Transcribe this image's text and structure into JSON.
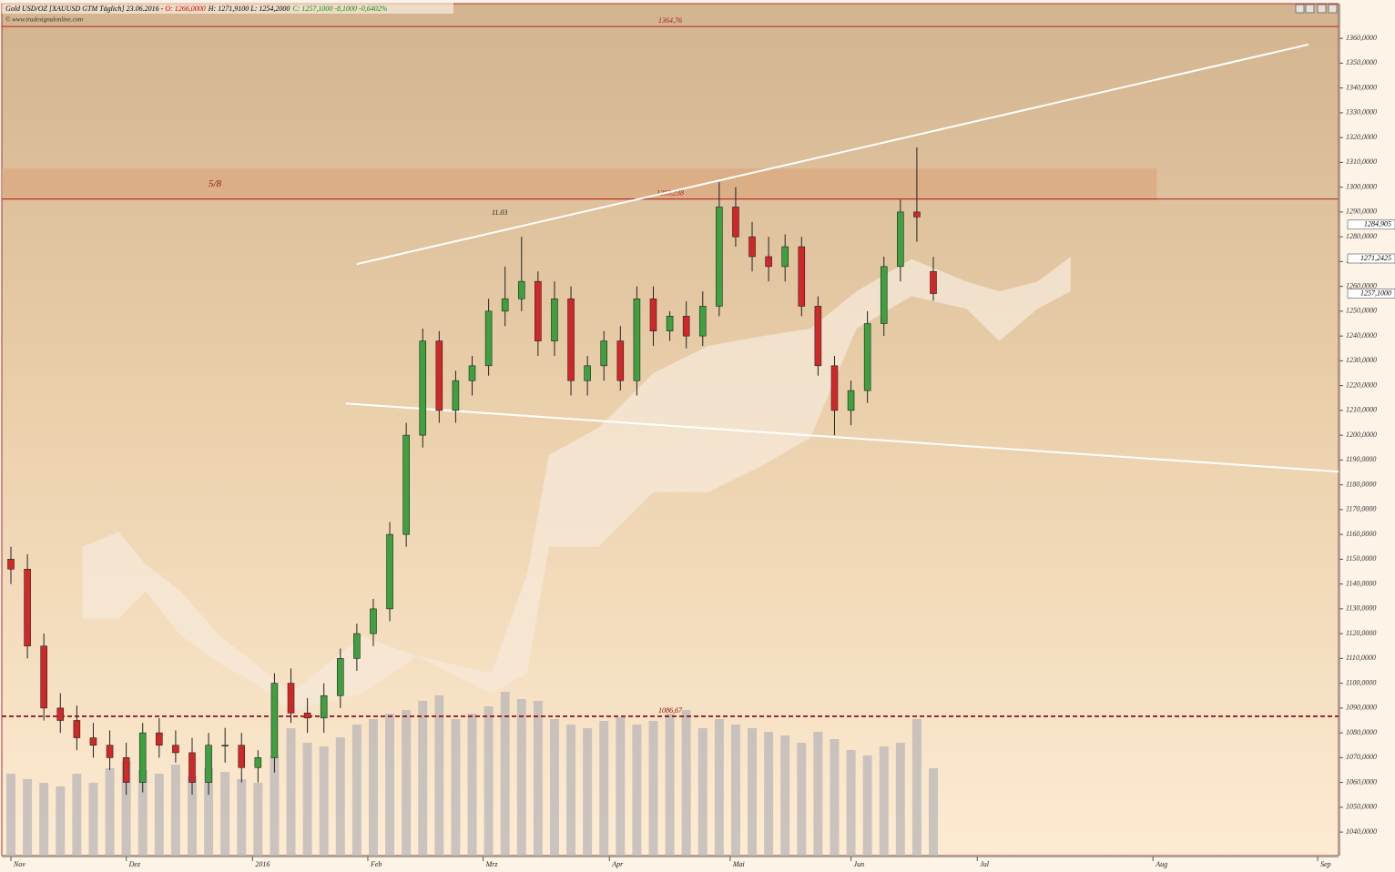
{
  "chart_data": {
    "type": "candlestick",
    "header": {
      "instrument": "Gold USD/OZ [XAUUSD GTM  Täglich] 23.06.2016 - ",
      "open": "O: 1266,0000",
      "hl": "H: 1271,9100 L: 1254,2000",
      "close": "C: 1257,1000 -8,1000 -0,6402%",
      "source": "© www.tradesignalonline.com"
    },
    "x": [
      0,
      3,
      6,
      9,
      12,
      15,
      18,
      21,
      24,
      27,
      30,
      33,
      36,
      39,
      42,
      45,
      48,
      51,
      54,
      57,
      60,
      63,
      66,
      69,
      72,
      75,
      78,
      81,
      84,
      87,
      90,
      93,
      96,
      99,
      102,
      105,
      108,
      111,
      114,
      117,
      120,
      123,
      126,
      129,
      132,
      135,
      138,
      141,
      144,
      147,
      150,
      153,
      156,
      159,
      162,
      165,
      168
    ],
    "open": [
      1150,
      1146,
      1115,
      1090,
      1085,
      1078,
      1075,
      1070,
      1060,
      1080,
      1075,
      1072,
      1060,
      1075,
      1075,
      1066,
      1070,
      1100,
      1088,
      1086,
      1095,
      1110,
      1120,
      1130,
      1160,
      1200,
      1238,
      1210,
      1222,
      1228,
      1250,
      1255,
      1262,
      1238,
      1255,
      1222,
      1228,
      1238,
      1222,
      1255,
      1242,
      1248,
      1240,
      1252,
      1292,
      1280,
      1272,
      1268,
      1276,
      1252,
      1228,
      1210,
      1218,
      1245,
      1268,
      1290,
      1266
    ],
    "high": [
      1155,
      1152,
      1120,
      1096,
      1091,
      1084,
      1081,
      1076,
      1084,
      1086,
      1081,
      1078,
      1080,
      1082,
      1080,
      1073,
      1104,
      1106,
      1094,
      1100,
      1114,
      1124,
      1134,
      1165,
      1205,
      1243,
      1242,
      1226,
      1232,
      1255,
      1268,
      1280,
      1266,
      1262,
      1260,
      1232,
      1242,
      1244,
      1260,
      1260,
      1250,
      1254,
      1258,
      1302,
      1300,
      1286,
      1280,
      1281,
      1280,
      1256,
      1232,
      1222,
      1250,
      1272,
      1295,
      1316,
      1271.9
    ],
    "low": [
      1140,
      1110,
      1085,
      1080,
      1073,
      1070,
      1065,
      1055,
      1056,
      1070,
      1068,
      1055,
      1055,
      1068,
      1060,
      1060,
      1064,
      1084,
      1080,
      1080,
      1090,
      1105,
      1115,
      1125,
      1155,
      1195,
      1205,
      1205,
      1216,
      1224,
      1244,
      1250,
      1232,
      1232,
      1216,
      1216,
      1222,
      1218,
      1216,
      1236,
      1238,
      1235,
      1236,
      1248,
      1276,
      1266,
      1262,
      1262,
      1248,
      1224,
      1200,
      1204,
      1213,
      1240,
      1262,
      1278,
      1254.2
    ],
    "close": [
      1146,
      1115,
      1090,
      1085,
      1078,
      1075,
      1070,
      1060,
      1080,
      1075,
      1072,
      1060,
      1075,
      1075,
      1066,
      1070,
      1100,
      1088,
      1086,
      1095,
      1110,
      1120,
      1130,
      1160,
      1200,
      1238,
      1210,
      1222,
      1228,
      1250,
      1255,
      1262,
      1238,
      1255,
      1222,
      1228,
      1238,
      1222,
      1255,
      1242,
      1248,
      1240,
      1252,
      1292,
      1280,
      1272,
      1268,
      1276,
      1252,
      1228,
      1210,
      1218,
      1245,
      1268,
      1290,
      1288,
      1257.1
    ],
    "up_color": "#3fa03f",
    "down_color": "#d02828",
    "volume": [
      45,
      42,
      40,
      38,
      45,
      40,
      48,
      52,
      47,
      45,
      50,
      44,
      48,
      46,
      42,
      40,
      55,
      70,
      62,
      60,
      65,
      72,
      75,
      78,
      80,
      85,
      88,
      75,
      78,
      82,
      90,
      86,
      85,
      75,
      72,
      70,
      74,
      76,
      72,
      74,
      78,
      80,
      70,
      75,
      72,
      70,
      68,
      66,
      62,
      68,
      64,
      58,
      55,
      60,
      62,
      75,
      48
    ],
    "vlim": [
      0,
      100
    ],
    "volume_color": "#b9b5b8",
    "cloud": {
      "x": [
        13,
        19.6,
        24.5,
        31,
        38,
        44.5,
        51,
        64,
        74,
        87.5,
        94,
        98,
        107,
        117,
        127,
        137,
        145.6,
        154,
        164,
        174,
        180,
        187,
        193
      ],
      "upper": [
        1155,
        1161,
        1148,
        1137,
        1119,
        1108,
        1096,
        1119,
        1111,
        1104,
        1144,
        1192,
        1203,
        1225,
        1236,
        1240,
        1243,
        1258,
        1271,
        1262,
        1258,
        1262,
        1272
      ],
      "lower": [
        1126,
        1126,
        1137,
        1119,
        1108,
        1100,
        1089,
        1096,
        1111,
        1096,
        1104,
        1155,
        1155,
        1177,
        1177,
        1188,
        1199,
        1243,
        1256,
        1251,
        1238,
        1251,
        1258
      ],
      "color": "#f6e8d8"
    },
    "hlines": [
      {
        "value": 1364.76,
        "label": "1364,76",
        "color": "#b02020",
        "dashed": false
      },
      {
        "value": 1295.238,
        "label": "1295,238",
        "color": "#b02020",
        "dashed": false
      },
      {
        "value": 1086.67,
        "label": "1086,67",
        "color": "#8b0000",
        "dashed": true
      }
    ],
    "band": {
      "from": 1294.7,
      "to": 1307.5,
      "xend": 208.7,
      "label": "5/8",
      "color": "#dba67e"
    },
    "trendlines": [
      {
        "x": [
          63,
          236.3
        ],
        "y": [
          1269,
          1357.5
        ]
      },
      {
        "x": [
          61,
          241.8
        ],
        "y": [
          1212.8,
          1185.3
        ]
      }
    ],
    "annotation": {
      "text": "11.03",
      "x": 89,
      "y": 1289.5
    },
    "price_labels": [
      {
        "value": 1284.905,
        "label": "1284,905"
      },
      {
        "value": 1271.2425,
        "label": "1271,2425"
      },
      {
        "value": 1257.1,
        "label": "1257,1000"
      }
    ],
    "xlim": [
      -1.66,
      241.8
    ],
    "xticks": [
      {
        "value": 0,
        "label": "Nov"
      },
      {
        "value": 21,
        "label": "Dez"
      },
      {
        "value": 44,
        "label": "2016"
      },
      {
        "value": 65,
        "label": "Feb"
      },
      {
        "value": 86,
        "label": "Mrz"
      },
      {
        "value": 109,
        "label": "Apr"
      },
      {
        "value": 131,
        "label": "Mai"
      },
      {
        "value": 153,
        "label": "Jun"
      },
      {
        "value": 176,
        "label": "Jul"
      },
      {
        "value": 208,
        "label": "Aug"
      },
      {
        "value": 238,
        "label": "Sep"
      }
    ],
    "ylim": [
      1030.5,
      1374
    ],
    "yticks": [
      {
        "value": 1040,
        "label": "1040,0000"
      },
      {
        "value": 1050,
        "label": "1050,0000"
      },
      {
        "value": 1060,
        "label": "1060,0000"
      },
      {
        "value": 1070,
        "label": "1070,0000"
      },
      {
        "value": 1080,
        "label": "1080,0000"
      },
      {
        "value": 1090,
        "label": "1090,0000"
      },
      {
        "value": 1100,
        "label": "1100,0000"
      },
      {
        "value": 1110,
        "label": "1110,0000"
      },
      {
        "value": 1120,
        "label": "1120,0000"
      },
      {
        "value": 1130,
        "label": "1130,0000"
      },
      {
        "value": 1140,
        "label": "1140,0000"
      },
      {
        "value": 1150,
        "label": "1150,0000"
      },
      {
        "value": 1160,
        "label": "1160,0000"
      },
      {
        "value": 1170,
        "label": "1170,0000"
      },
      {
        "value": 1180,
        "label": "1180,0000"
      },
      {
        "value": 1190,
        "label": "1190,0000"
      },
      {
        "value": 1200,
        "label": "1200,0000"
      },
      {
        "value": 1210,
        "label": "1210,0000"
      },
      {
        "value": 1220,
        "label": "1220,0000"
      },
      {
        "value": 1230,
        "label": "1230,0000"
      },
      {
        "value": 1240,
        "label": "1240,0000"
      },
      {
        "value": 1250,
        "label": "1250,0000"
      },
      {
        "value": 1260,
        "label": "1260,0000"
      },
      {
        "value": 1270,
        "label": "1270,0000"
      },
      {
        "value": 1280,
        "label": "1280,0000"
      },
      {
        "value": 1290,
        "label": "1290,0000"
      },
      {
        "value": 1300,
        "label": "1300,0000"
      },
      {
        "value": 1310,
        "label": "1310,0000"
      },
      {
        "value": 1320,
        "label": "1320,0000"
      },
      {
        "value": 1330,
        "label": "1330,0000"
      },
      {
        "value": 1340,
        "label": "1340,0000"
      },
      {
        "value": 1350,
        "label": "1350,0000"
      },
      {
        "value": 1360,
        "label": "1360,0000"
      }
    ]
  }
}
